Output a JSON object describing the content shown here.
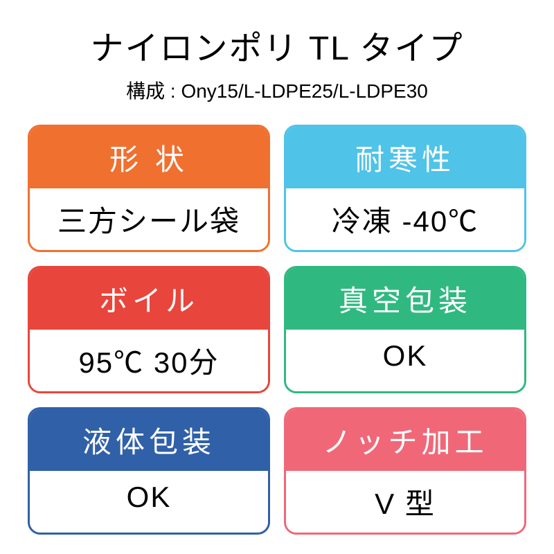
{
  "title": "ナイロンポリ TL タイプ",
  "subtitle": "構成 : Ony15/L-LDPE25/L-LDPE30",
  "styling": {
    "title_fontsize": 48,
    "title_color": "#000000",
    "subtitle_fontsize": 28,
    "subtitle_color": "#000000",
    "background_color": "#ffffff",
    "card_border_radius": 18,
    "card_border_width": 3,
    "header_fontsize": 42,
    "header_text_color": "#ffffff",
    "body_fontsize": 42,
    "body_text_color": "#000000",
    "body_background": "#ffffff",
    "grid_gap": 20
  },
  "cards": [
    {
      "header": "形 状",
      "body": "三方シール袋",
      "color": "#f07030"
    },
    {
      "header": "耐寒性",
      "body": "冷凍 -40℃",
      "color": "#4fc3e8"
    },
    {
      "header": "ボイル",
      "body": "95℃ 30分",
      "color": "#e8453c"
    },
    {
      "header": "真空包装",
      "body": "OK",
      "color": "#2fb980"
    },
    {
      "header": "液体包装",
      "body": "OK",
      "color": "#3060a8"
    },
    {
      "header": "ノッチ加工",
      "body": "V 型",
      "color": "#f06878"
    }
  ]
}
